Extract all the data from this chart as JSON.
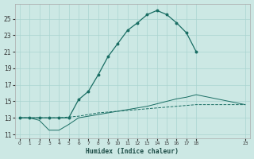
{
  "xlabel": "Humidex (Indice chaleur)",
  "background_color": "#cce8e4",
  "grid_color": "#aad4d0",
  "line_color": "#1a6e64",
  "xlim": [
    -0.5,
    23.5
  ],
  "ylim": [
    10.5,
    26.8
  ],
  "yticks": [
    11,
    13,
    15,
    17,
    19,
    21,
    23,
    25
  ],
  "xticks": [
    0,
    1,
    2,
    3,
    4,
    5,
    6,
    7,
    8,
    9,
    10,
    11,
    12,
    13,
    14,
    15,
    16,
    17,
    18,
    23
  ],
  "line1_x": [
    0,
    1,
    2,
    3,
    4,
    5,
    6,
    7,
    8,
    9,
    10,
    11,
    12,
    13,
    14,
    15,
    16,
    17,
    18,
    23
  ],
  "line1_y": [
    13.0,
    13.0,
    13.0,
    13.0,
    13.0,
    13.1,
    13.2,
    13.4,
    13.6,
    13.7,
    13.8,
    13.9,
    14.0,
    14.1,
    14.2,
    14.3,
    14.4,
    14.5,
    14.6,
    14.6
  ],
  "line2_x": [
    0,
    1,
    2,
    3,
    4,
    5,
    6,
    7,
    8,
    9,
    10,
    11,
    12,
    13,
    14,
    15,
    16,
    17,
    18,
    23
  ],
  "line2_y": [
    13.0,
    13.0,
    12.7,
    11.5,
    11.5,
    12.2,
    13.0,
    13.2,
    13.4,
    13.6,
    13.8,
    14.0,
    14.2,
    14.4,
    14.7,
    15.0,
    15.3,
    15.5,
    15.8,
    14.6
  ],
  "line3_x": [
    0,
    1,
    2,
    3,
    4,
    5,
    6,
    7,
    8,
    9,
    10,
    11,
    12,
    13,
    14,
    15,
    16,
    17,
    18
  ],
  "line3_y": [
    13.0,
    13.0,
    13.0,
    13.0,
    13.0,
    13.0,
    15.2,
    16.2,
    18.2,
    20.4,
    22.0,
    23.6,
    24.5,
    25.5,
    26.0,
    25.5,
    24.5,
    23.3,
    21.0
  ]
}
